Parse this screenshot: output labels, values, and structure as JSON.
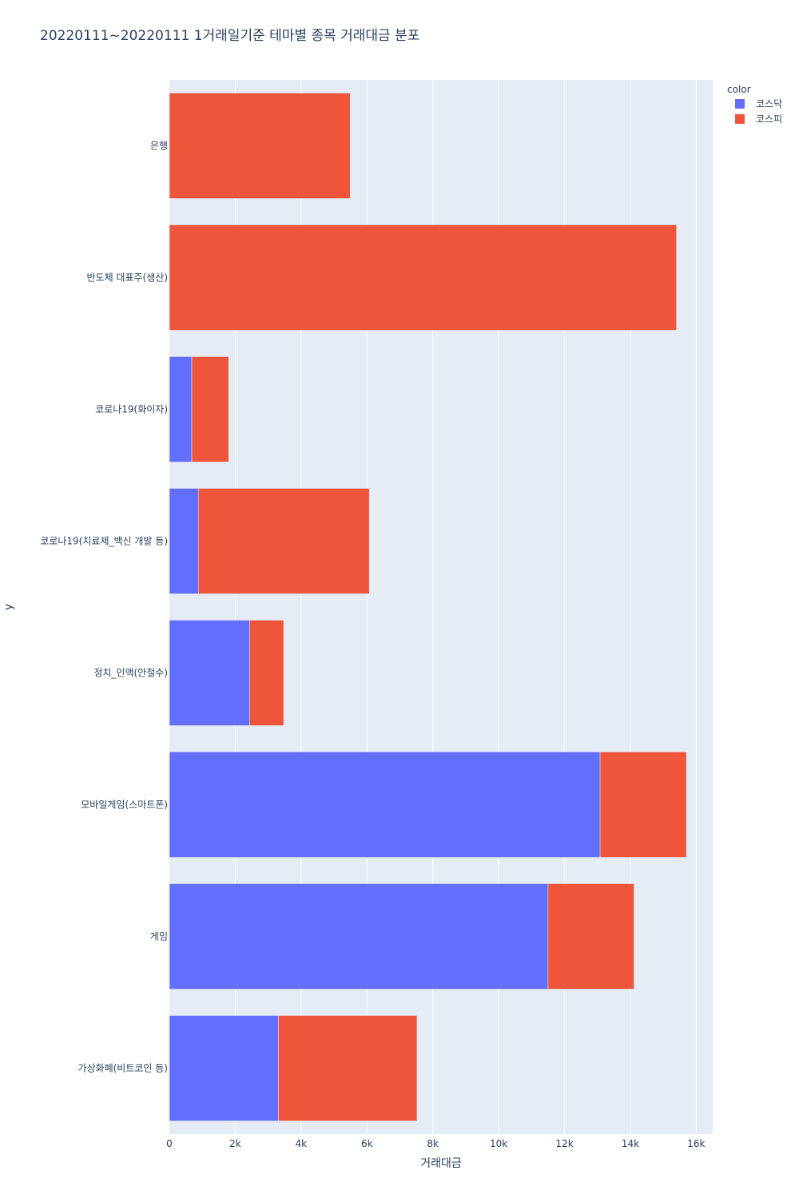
{
  "chart_data": {
    "type": "bar",
    "orientation": "horizontal",
    "barmode": "stack",
    "title": "20220111~20220111 1거래일기준 테마별 종목 거래대금 분포",
    "xlabel": "거래대금",
    "ylabel": "y",
    "xlim": [
      0,
      16500
    ],
    "x_ticks": [
      0,
      2000,
      4000,
      6000,
      8000,
      10000,
      12000,
      14000,
      16000
    ],
    "x_tick_labels": [
      "0",
      "2k",
      "4k",
      "6k",
      "8k",
      "10k",
      "12k",
      "14k",
      "16k"
    ],
    "grid": true,
    "legend_title": "color",
    "legend_position": "top-right",
    "categories": [
      "은행",
      "반도체 대표주(생산)",
      "코로나19(화이자)",
      "코로나19(치료제_백신 개발 등)",
      "정치_인맥(안철수)",
      "모바일게임(스마트폰)",
      "게임",
      "가상화폐(비트코인 등)"
    ],
    "series": [
      {
        "name": "코스닥",
        "color": "#636efa",
        "values": [
          0,
          0,
          680,
          880,
          2440,
          13080,
          11500,
          3310
        ]
      },
      {
        "name": "코스피",
        "color": "#ef553b",
        "values": [
          5490,
          15400,
          1120,
          5190,
          1030,
          2620,
          2610,
          4210
        ]
      }
    ]
  }
}
